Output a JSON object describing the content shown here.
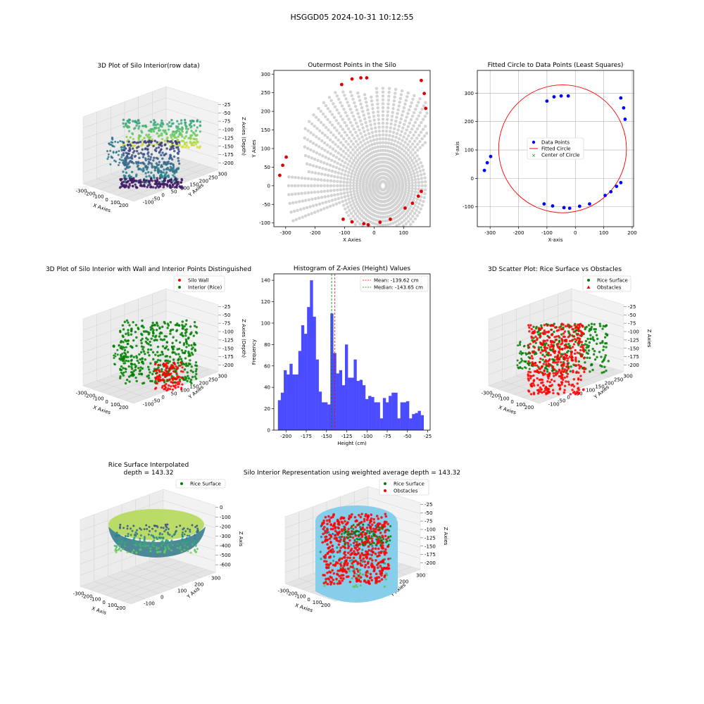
{
  "figure": {
    "suptitle": "HSGGD05 2024-10-31 10:12:55"
  },
  "chart_data": [
    {
      "id": "p1",
      "type": "scatter3d",
      "title": "3D Plot of Silo Interior(row data)",
      "xlabel": "X Axies",
      "ylabel": "Y Axies",
      "zlabel": "Z Axies (Depth)",
      "xticks": [
        "-300",
        "-200",
        "-100",
        "0",
        "100",
        "200"
      ],
      "yticks": [
        "-100",
        "-50",
        "0",
        "50",
        "100",
        "150",
        "200",
        "250",
        "300"
      ],
      "zticks": [
        "-25",
        "-50",
        "-75",
        "-100",
        "-125",
        "-150",
        "-175",
        "-200"
      ],
      "colormap": "viridis"
    },
    {
      "id": "p2",
      "type": "scatter",
      "title": "Outermost Points in the Silo",
      "xlabel": "X Axies",
      "ylabel": "Y Axies",
      "xlim": [
        -340,
        190
      ],
      "ylim": [
        -110,
        310
      ],
      "xticks": [
        -300,
        -200,
        -100,
        0,
        100
      ],
      "yticks": [
        -100,
        -50,
        0,
        50,
        100,
        150,
        200,
        250,
        300
      ],
      "background_color": "#d3d3d3",
      "outer_color": "#e00000",
      "outer_points": [
        [
          -320,
          28
        ],
        [
          -310,
          55
        ],
        [
          -298,
          77
        ],
        [
          -110,
          272
        ],
        [
          -75,
          287
        ],
        [
          -45,
          290
        ],
        [
          -25,
          290
        ],
        [
          160,
          283
        ],
        [
          170,
          248
        ],
        [
          175,
          208
        ],
        [
          160,
          -15
        ],
        [
          150,
          -28
        ],
        [
          130,
          -47
        ],
        [
          105,
          -60
        ],
        [
          55,
          -90
        ],
        [
          20,
          -98
        ],
        [
          -20,
          -105
        ],
        [
          -35,
          -102
        ],
        [
          -75,
          -97
        ],
        [
          -105,
          -90
        ]
      ]
    },
    {
      "id": "p3",
      "type": "scatter+circle",
      "title": "Fitted Circle to Data Points (Least Squares)",
      "xlabel": "X-axis",
      "ylabel": "Y-axis",
      "xlim": [
        -345,
        205
      ],
      "ylim": [
        -170,
        380
      ],
      "xticks": [
        -300,
        -200,
        -100,
        0,
        100,
        200
      ],
      "yticks": [
        -100,
        0,
        100,
        200,
        300
      ],
      "grid": true,
      "points": [
        [
          -320,
          28
        ],
        [
          -310,
          55
        ],
        [
          -298,
          77
        ],
        [
          -100,
          272
        ],
        [
          -75,
          287
        ],
        [
          -50,
          290
        ],
        [
          -25,
          290
        ],
        [
          160,
          283
        ],
        [
          170,
          248
        ],
        [
          175,
          208
        ],
        [
          160,
          -15
        ],
        [
          145,
          -28
        ],
        [
          125,
          -47
        ],
        [
          105,
          -60
        ],
        [
          50,
          -90
        ],
        [
          15,
          -98
        ],
        [
          -20,
          -105
        ],
        [
          -40,
          -103
        ],
        [
          -80,
          -97
        ],
        [
          -110,
          -90
        ]
      ],
      "circle": {
        "cx": -45,
        "cy": 104,
        "r": 225
      },
      "legend": [
        "Data Points",
        "Fitted Circle",
        "Center of Circle"
      ],
      "colors": {
        "points": "#0000ff",
        "circle": "#ff0000",
        "center": "#008000"
      }
    },
    {
      "id": "p4",
      "type": "scatter3d",
      "title": "3D Plot of Silo Interior with Wall and Interior Points Distinguished",
      "xlabel": "X Axies",
      "ylabel": "Y Axies",
      "zlabel": "Z Axies (Depth)",
      "xticks": [
        "-300",
        "-200",
        "-100",
        "0",
        "100",
        "200"
      ],
      "yticks": [
        "-100",
        "-50",
        "0",
        "50",
        "100",
        "150",
        "200",
        "250",
        "300"
      ],
      "zticks": [
        "-25",
        "-50",
        "-75",
        "-100",
        "-125",
        "-150",
        "-175",
        "-200"
      ],
      "legend": [
        "Silo Wall",
        "Interior (Rice)"
      ],
      "colors": {
        "wall": "#ff0000",
        "interior": "#008000"
      }
    },
    {
      "id": "p5",
      "type": "histogram",
      "title": "Histogram of Z-Axies (Height) Values",
      "xlabel": "Height (cm)",
      "ylabel": "Frequency",
      "xlim": [
        -215,
        -22
      ],
      "ylim": [
        0,
        146
      ],
      "xticks": [
        -200,
        -175,
        -150,
        -125,
        -100,
        -75,
        -50,
        -25
      ],
      "yticks": [
        0,
        20,
        40,
        60,
        80,
        100,
        120,
        140
      ],
      "bin_start": -210,
      "bin_width": 3.6,
      "values": [
        28,
        35,
        56,
        52,
        62,
        52,
        52,
        74,
        98,
        90,
        115,
        140,
        106,
        66,
        36,
        26,
        26,
        24,
        109,
        72,
        53,
        56,
        42,
        80,
        49,
        49,
        66,
        46,
        47,
        42,
        29,
        32,
        31,
        26,
        26,
        11,
        30,
        26,
        32,
        35,
        35,
        11,
        26,
        26,
        27,
        11,
        15,
        16,
        18,
        14
      ],
      "mean": -139.62,
      "median": -143.65,
      "legend": [
        "Mean: -139.62 cm",
        "Median: -143.65 cm"
      ],
      "colors": {
        "bars": "#4c4cff",
        "mean": "#ff0000",
        "median": "#008000"
      }
    },
    {
      "id": "p6",
      "type": "scatter3d",
      "title": "3D Scatter Plot: Rice Surface vs Obstacles",
      "xlabel": "X Axies",
      "ylabel": "Y Axies",
      "zlabel": "Z Axies",
      "xticks": [
        "-300",
        "-200",
        "-100",
        "0",
        "100",
        "200"
      ],
      "yticks": [
        "-100",
        "-50",
        "0",
        "50",
        "100",
        "150",
        "200",
        "250",
        "300"
      ],
      "zticks": [
        "-25",
        "-50",
        "-75",
        "-100",
        "-125",
        "-150",
        "-175",
        "-200"
      ],
      "legend": [
        "Rice Surface",
        "Obstacles"
      ],
      "colors": {
        "rice": "#008000",
        "obstacles": "#ff0000"
      }
    },
    {
      "id": "p7",
      "type": "surface3d",
      "title_lines": [
        "Rice Surface Interpolated",
        "depth = 143.32"
      ],
      "xlabel": "X Axis",
      "ylabel": "Y Axis",
      "zlabel": "Z Axis",
      "xticks": [
        "-300",
        "-200",
        "-100",
        "0",
        "100",
        "200"
      ],
      "yticks": [
        "-100",
        "0",
        "100",
        "200",
        "300"
      ],
      "zticks": [
        "0",
        "-100",
        "-200",
        "-300",
        "-400",
        "-500",
        "-600"
      ],
      "legend": [
        "Rice Surface"
      ],
      "colors": {
        "rice": "#008000"
      }
    },
    {
      "id": "p8",
      "type": "surface3d",
      "title": "Silo Interior Representation using weighted average depth = 143.32",
      "xlabel": "X Axies",
      "ylabel": "Y Axies",
      "zlabel": "Z Axies",
      "xticks": [
        "-300",
        "-200",
        "-100",
        "0",
        "100",
        "200"
      ],
      "yticks": [
        "-100",
        "0",
        "100",
        "200",
        "300"
      ],
      "zticks": [
        "-25",
        "-50",
        "-75",
        "-100",
        "-125",
        "-150",
        "-175",
        "-200"
      ],
      "legend": [
        "Rice Surface",
        "Obstacles"
      ],
      "colors": {
        "rice": "#008000",
        "obstacles": "#ff0000",
        "cylinder": "#87ceeb"
      }
    }
  ]
}
